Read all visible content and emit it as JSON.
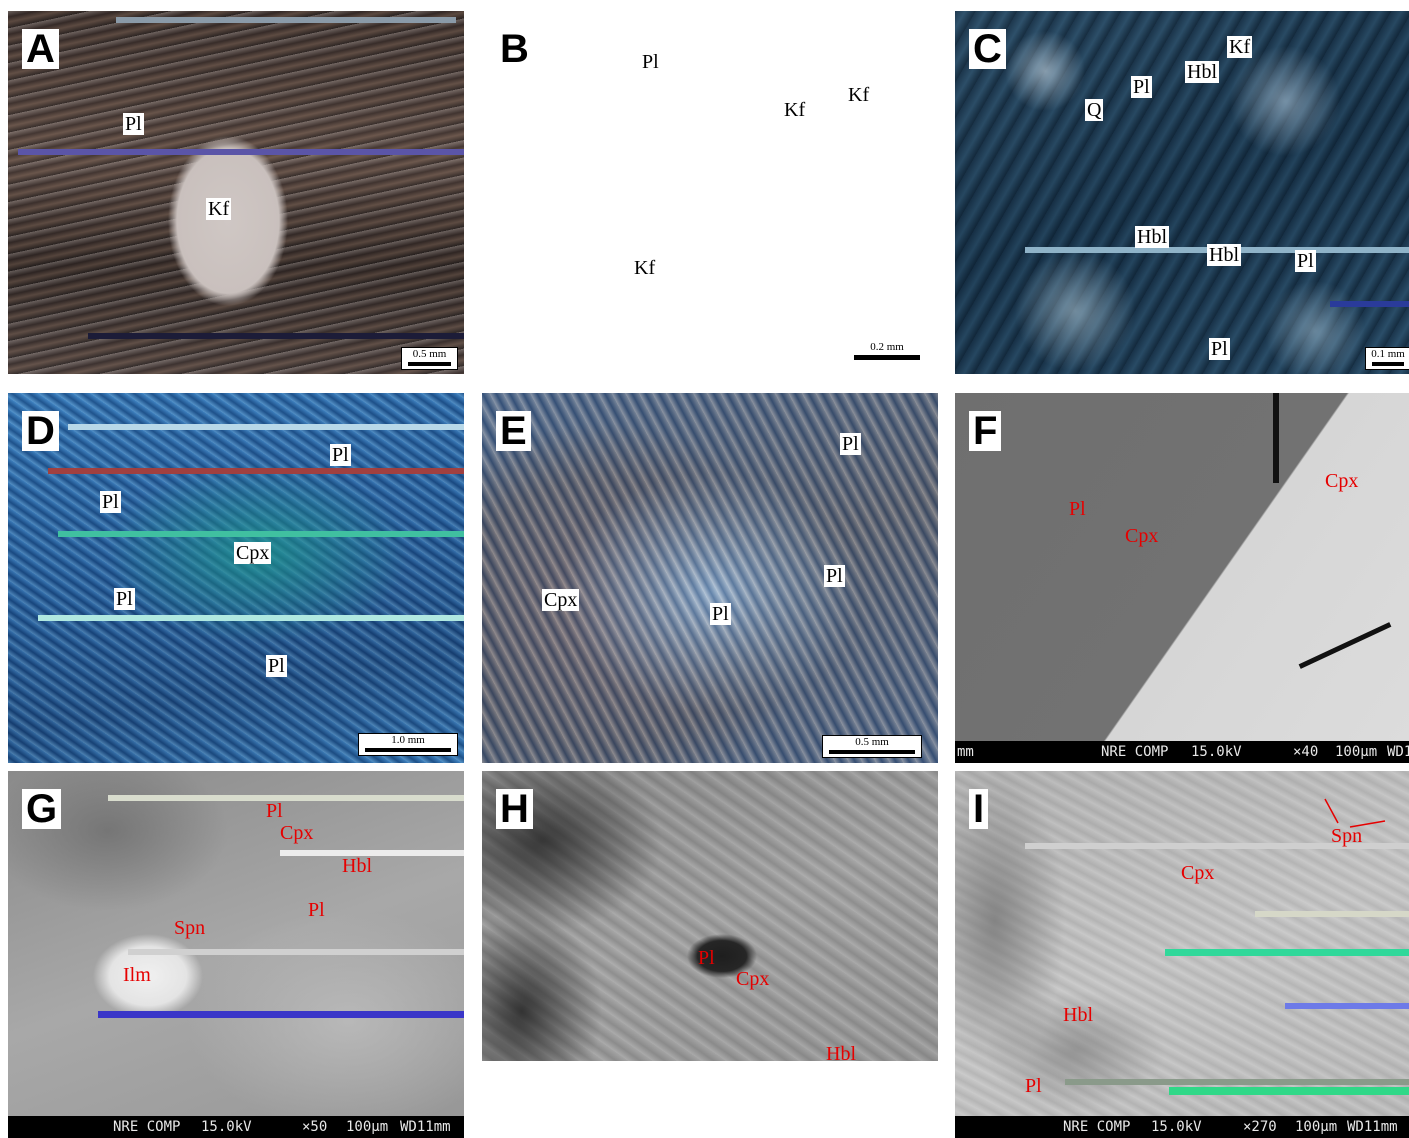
{
  "panels": {
    "A": {
      "letter": "A",
      "labels": {
        "pl": "Pl",
        "kf": "Kf"
      },
      "scale": "0.5 mm"
    },
    "B": {
      "letter": "B",
      "labels": {
        "pl": "Pl",
        "kf1": "Kf",
        "kf2": "Kf",
        "kf3": "Kf"
      },
      "scale": "0.2 mm"
    },
    "C": {
      "letter": "C",
      "labels": {
        "kf": "Kf",
        "hbl1": "Hbl",
        "pl1": "Pl",
        "q": "Q",
        "hbl2": "Hbl",
        "hbl3": "Hbl",
        "pl2": "Pl",
        "pl3": "Pl"
      },
      "scale": "0.1 mm"
    },
    "D": {
      "letter": "D",
      "labels": {
        "pl1": "Pl",
        "pl2": "Pl",
        "cpx": "Cpx",
        "pl3": "Pl",
        "pl4": "Pl"
      },
      "scale": "1.0 mm"
    },
    "E": {
      "letter": "E",
      "labels": {
        "pl1": "Pl",
        "cpx": "Cpx",
        "pl2": "Pl",
        "pl3": "Pl"
      },
      "scale": "0.5 mm"
    },
    "F": {
      "letter": "F",
      "labels": {
        "pl": "Pl",
        "cpx1": "Cpx",
        "cpx2": "Cpx"
      },
      "sem": {
        "left": "mm",
        "detector": "NRE COMP",
        "kv": "15.0kV",
        "mag": "×40",
        "scale": "100μm",
        "wd": "WD1"
      }
    },
    "G": {
      "letter": "G",
      "labels": {
        "pl1": "Pl",
        "cpx": "Cpx",
        "hbl": "Hbl",
        "pl2": "Pl",
        "spn": "Spn",
        "ilm": "Ilm"
      },
      "sem": {
        "detector": "NRE COMP",
        "kv": "15.0kV",
        "mag": "×50",
        "scale": "100μm",
        "wd": "WD11mm"
      }
    },
    "H": {
      "letter": "H",
      "labels": {
        "pl": "Pl",
        "cpx": "Cpx",
        "hbl": "Hbl"
      }
    },
    "I": {
      "letter": "I",
      "labels": {
        "spn": "Spn",
        "cpx": "Cpx",
        "hbl": "Hbl",
        "pl": "Pl"
      },
      "sem": {
        "detector": "NRE COMP",
        "kv": "15.0kV",
        "mag": "×270",
        "scale": "100μm",
        "wd": "WD11mm"
      }
    }
  },
  "colors": {
    "label_red": "#e60000",
    "sem_bar": "#000000"
  }
}
